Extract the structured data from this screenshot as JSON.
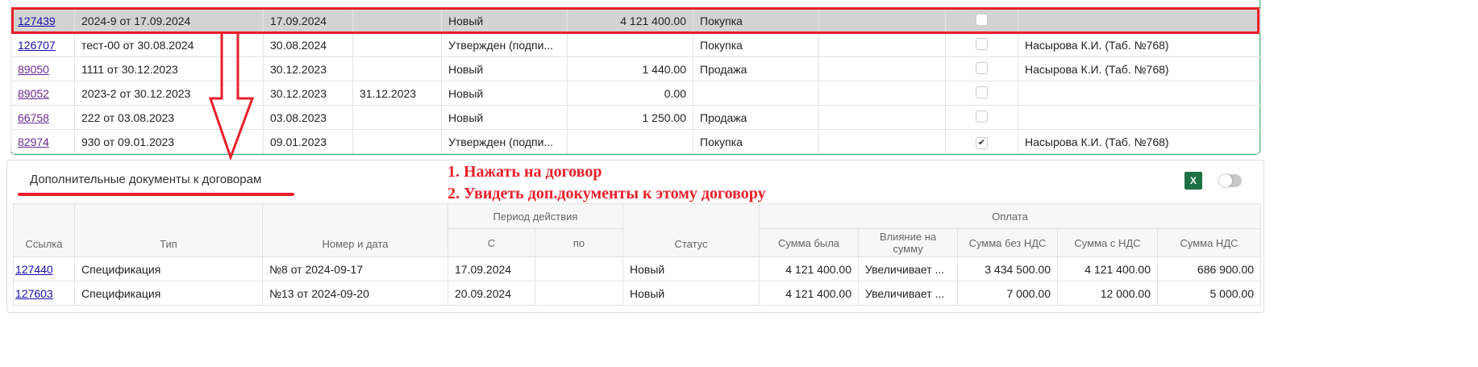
{
  "contracts": {
    "rows": [
      {
        "link": "127439",
        "name": "2024-9 от 17.09.2024",
        "date_from": "17.09.2024",
        "date_to": "",
        "status": "Новый",
        "amount": "4 121 400.00",
        "type": "Покупка",
        "extra": "",
        "checked": false,
        "person": "",
        "selected": true,
        "visited": false
      },
      {
        "link": "126707",
        "name": "тест-00 от 30.08.2024",
        "date_from": "30.08.2024",
        "date_to": "",
        "status": "Утвержден (подпи...",
        "amount": "",
        "type": "Покупка",
        "extra": "",
        "checked": false,
        "person": "Насырова К.И. (Таб. №768)",
        "selected": false,
        "visited": false
      },
      {
        "link": "89050",
        "name": "1111 от 30.12.2023",
        "date_from": "30.12.2023",
        "date_to": "",
        "status": "Новый",
        "amount": "1 440.00",
        "type": "Продажа",
        "extra": "",
        "checked": false,
        "person": "Насырова К.И. (Таб. №768)",
        "selected": false,
        "visited": true
      },
      {
        "link": "89052",
        "name": "2023-2 от 30.12.2023",
        "date_from": "30.12.2023",
        "date_to": "31.12.2023",
        "status": "Новый",
        "amount": "0.00",
        "type": "",
        "extra": "",
        "checked": false,
        "person": "",
        "selected": false,
        "visited": true
      },
      {
        "link": "66758",
        "name": "222 от 03.08.2023",
        "date_from": "03.08.2023",
        "date_to": "",
        "status": "Новый",
        "amount": "1 250.00",
        "type": "Продажа",
        "extra": "",
        "checked": false,
        "person": "",
        "selected": false,
        "visited": true
      },
      {
        "link": "82974",
        "name": "930 от 09.01.2023",
        "date_from": "09.01.2023",
        "date_to": "",
        "status": "Утвержден (подпи...",
        "amount": "",
        "type": "Покупка",
        "extra": "",
        "checked": true,
        "person": "Насырова К.И. (Таб. №768)",
        "selected": false,
        "visited": true
      }
    ]
  },
  "panel": {
    "title": "Дополнительные документы к договорам",
    "excel_label": "X",
    "annotation": [
      "1. Нажать на договор",
      "2. Увидеть доп.документы к этому договору"
    ],
    "headers": {
      "link": "Ссылка",
      "type": "Тип",
      "number_date": "Номер и дата",
      "period": "Период действия",
      "from": "С",
      "to": "по",
      "status": "Статус",
      "payment": "Оплата",
      "sum_was": "Сумма была",
      "effect": "Влияние на сумму",
      "sum_no_vat": "Сумма без НДС",
      "sum_vat": "Сумма с НДС",
      "vat": "Сумма НДС"
    },
    "rows": [
      {
        "link": "127440",
        "type": "Спецификация",
        "number_date": "№8 от 2024-09-17",
        "from": "17.09.2024",
        "to": "",
        "status": "Новый",
        "sum_was": "4 121 400.00",
        "effect": "Увеличивает ...",
        "sum_no_vat": "3 434 500.00",
        "sum_vat": "4 121 400.00",
        "vat": "686 900.00"
      },
      {
        "link": "127603",
        "type": "Спецификация",
        "number_date": "№13 от 2024-09-20",
        "from": "20.09.2024",
        "to": "",
        "status": "Новый",
        "sum_was": "4 121 400.00",
        "effect": "Увеличивает ...",
        "sum_no_vat": "7 000.00",
        "sum_vat": "12 000.00",
        "vat": "5 000.00"
      }
    ]
  },
  "colors": {
    "annotation": "#e8202a",
    "border_green": "#3cb371",
    "excel": "#1d7044",
    "selected_row": "#d3d3d3"
  }
}
